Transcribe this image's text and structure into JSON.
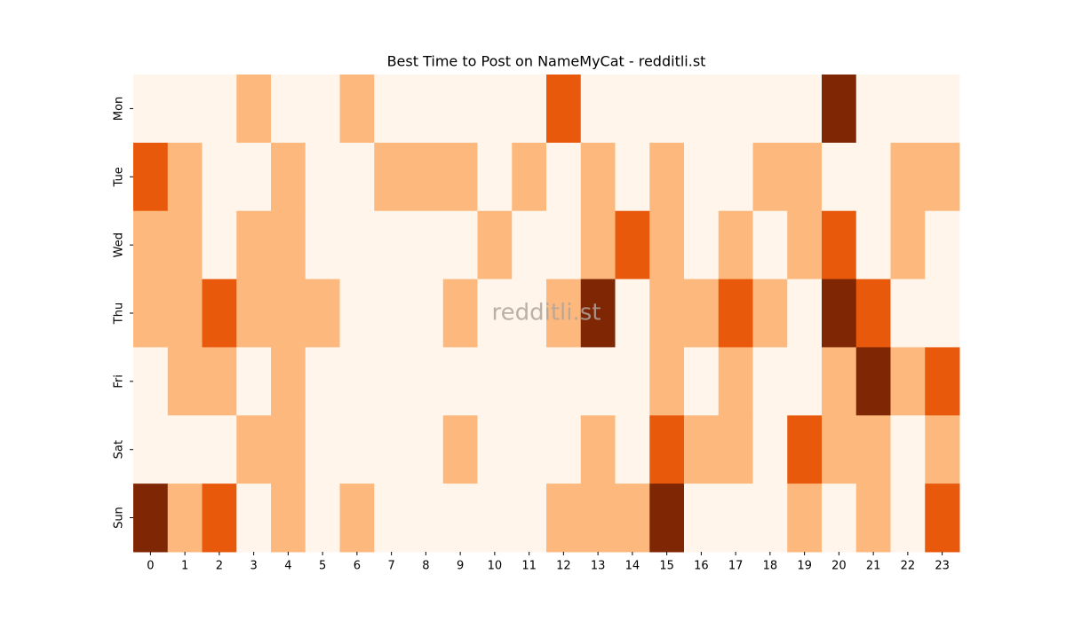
{
  "chart_data": {
    "type": "heatmap",
    "title": "Best Time to Post on NameMyCat - redditli.st",
    "watermark": "redditli.st",
    "x_categories": [
      "0",
      "1",
      "2",
      "3",
      "4",
      "5",
      "6",
      "7",
      "8",
      "9",
      "10",
      "11",
      "12",
      "13",
      "14",
      "15",
      "16",
      "17",
      "18",
      "19",
      "20",
      "21",
      "22",
      "23"
    ],
    "y_categories": [
      "Mon",
      "Tue",
      "Wed",
      "Thu",
      "Fri",
      "Sat",
      "Sun"
    ],
    "colors": [
      "#fff5eb",
      "#fdb97d",
      "#e8590c",
      "#7f2704"
    ],
    "values": [
      [
        0,
        0,
        0,
        1,
        0,
        0,
        1,
        0,
        0,
        0,
        0,
        0,
        2,
        0,
        0,
        0,
        0,
        0,
        0,
        0,
        3,
        0,
        0,
        0
      ],
      [
        2,
        1,
        0,
        0,
        1,
        0,
        0,
        1,
        1,
        1,
        0,
        1,
        0,
        1,
        0,
        1,
        0,
        0,
        1,
        1,
        0,
        0,
        1,
        1
      ],
      [
        1,
        1,
        0,
        1,
        1,
        0,
        0,
        0,
        0,
        0,
        1,
        0,
        0,
        1,
        2,
        1,
        0,
        1,
        0,
        1,
        2,
        0,
        1,
        0
      ],
      [
        1,
        1,
        2,
        1,
        1,
        1,
        0,
        0,
        0,
        1,
        0,
        0,
        1,
        3,
        0,
        1,
        1,
        2,
        1,
        0,
        3,
        2,
        0,
        0
      ],
      [
        0,
        1,
        1,
        0,
        1,
        0,
        0,
        0,
        0,
        0,
        0,
        0,
        0,
        0,
        0,
        1,
        0,
        1,
        0,
        0,
        1,
        3,
        1,
        2
      ],
      [
        0,
        0,
        0,
        1,
        1,
        0,
        0,
        0,
        0,
        1,
        0,
        0,
        0,
        1,
        0,
        2,
        1,
        1,
        0,
        2,
        1,
        1,
        0,
        1
      ],
      [
        3,
        1,
        2,
        0,
        1,
        0,
        1,
        0,
        0,
        0,
        0,
        0,
        1,
        1,
        1,
        3,
        0,
        0,
        0,
        1,
        0,
        1,
        0,
        2
      ]
    ]
  }
}
